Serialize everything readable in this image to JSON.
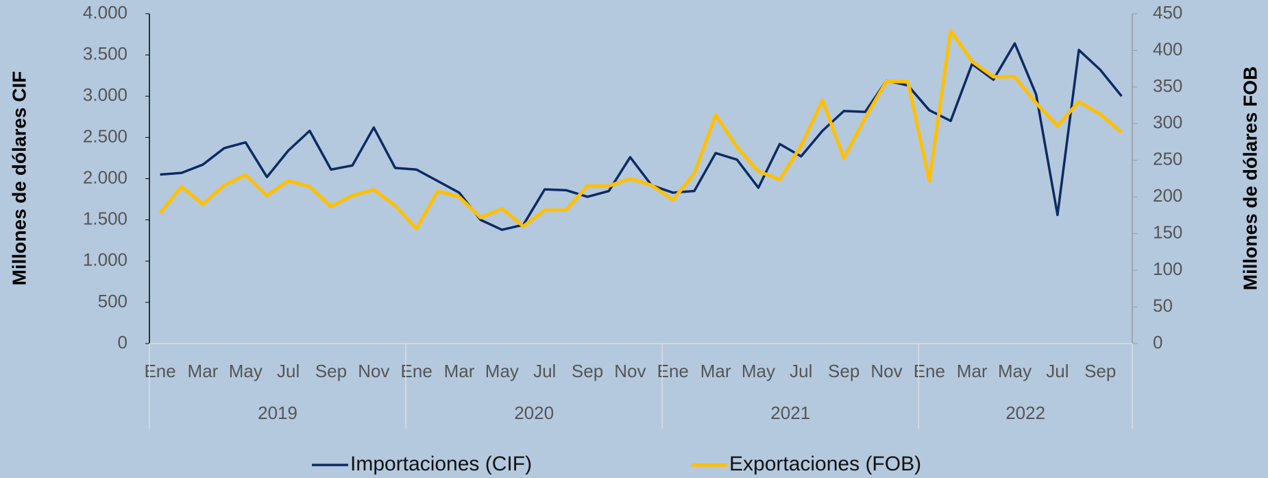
{
  "chart_data": {
    "type": "line",
    "categories": [
      "Ene",
      null,
      "Mar",
      null,
      "May",
      null,
      "Jul",
      null,
      "Sep",
      null,
      "Nov",
      null,
      "Ene",
      null,
      "Mar",
      null,
      "May",
      null,
      "Jul",
      null,
      "Sep",
      null,
      "Nov",
      null,
      "Ene",
      null,
      "Mar",
      null,
      "May",
      null,
      "Jul",
      null,
      "Sep",
      null,
      "Nov",
      null,
      "Ene",
      null,
      "Mar",
      null,
      "May",
      null,
      "Jul",
      null,
      "Sep",
      null
    ],
    "years": [
      "2019",
      "2020",
      "2021",
      "2022"
    ],
    "y_label": "Millones de dólares  CIF",
    "y2_label": "Millones de dólares FOB",
    "ylim": [
      0,
      4000
    ],
    "yticks": [
      0,
      500,
      {
        "value": 1000,
        "label": "1.000"
      },
      {
        "value": 1500,
        "label": "1.500"
      },
      {
        "value": 2000,
        "label": "2.000"
      },
      {
        "value": 2500,
        "label": "2.500"
      },
      {
        "value": 3000,
        "label": "3.000"
      },
      {
        "value": 3500,
        "label": "3.500"
      },
      {
        "value": 4000,
        "label": "4.000"
      }
    ],
    "y2lim": [
      0,
      450
    ],
    "y2ticks": [
      0,
      50,
      100,
      150,
      200,
      250,
      300,
      350,
      400,
      450
    ],
    "legend": "bottom",
    "series": [
      {
        "name": "Importaciones (CIF)",
        "color": "#0d2a62",
        "values": [
          2050,
          2070,
          2170,
          2370,
          2440,
          2020,
          2340,
          2580,
          2110,
          2160,
          2620,
          2130,
          2110,
          1970,
          1830,
          1500,
          1380,
          1440,
          1870,
          1860,
          1780,
          1850,
          2260,
          1920,
          1830,
          1850,
          2310,
          2230,
          1890,
          2420,
          2270,
          2580,
          2820,
          2810,
          3190,
          3130,
          2830,
          2700,
          3390,
          3200,
          3640,
          3020,
          1560,
          3560,
          3320,
          3000
        ]
      },
      {
        "name": "Exportaciones (FOB)",
        "color": "#ffc000",
        "axis": "y2",
        "values": [
          178,
          214,
          190,
          216,
          230,
          202,
          222,
          214,
          187,
          202,
          210,
          188,
          157,
          208,
          200,
          172,
          184,
          160,
          182,
          182,
          215,
          215,
          225,
          216,
          196,
          232,
          312,
          268,
          235,
          224,
          270,
          332,
          253,
          308,
          358,
          357,
          222,
          427,
          385,
          364,
          364,
          328,
          297,
          330,
          313,
          288
        ]
      }
    ]
  }
}
